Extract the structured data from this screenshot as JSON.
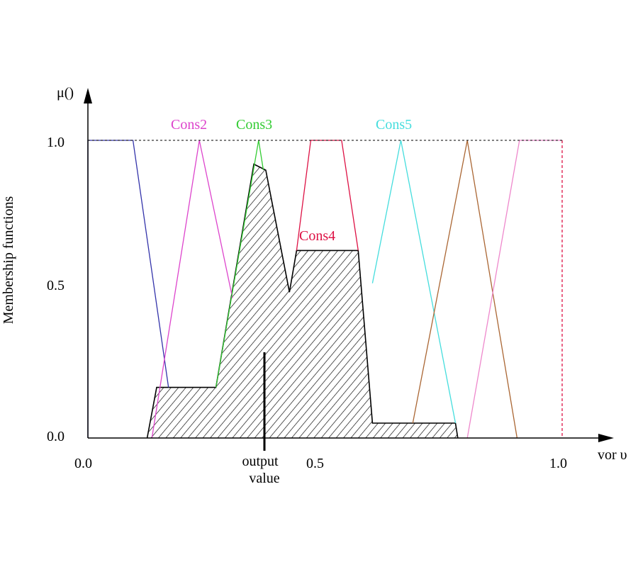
{
  "axis": {
    "y_label": "μ()",
    "x_label": "vor υ",
    "y_title": "Membership functions",
    "y_ticks": [
      "1.0",
      "0.5",
      "0.0"
    ],
    "x_ticks": [
      "0.0",
      "0.5",
      "1.0"
    ]
  },
  "output_label": {
    "line1": "output",
    "line2": "value"
  },
  "colors": {
    "cons1": "#3333aa",
    "cons2": "#dd44cc",
    "cons3": "#33cc33",
    "cons4": "#dd1144",
    "cons5": "#44dddd",
    "cons6": "#aa6633",
    "cons7": "#ee88cc",
    "cons8": "#dd1144",
    "aggregate": "#000000"
  },
  "chart_data": {
    "type": "line",
    "xlim": [
      0,
      1.0
    ],
    "ylim": [
      0,
      1.0
    ],
    "series": [
      {
        "key": "cons1",
        "x": [
          0,
          0,
          0.095,
          0.17
        ],
        "y": [
          0,
          1,
          1,
          0.17
        ]
      },
      {
        "key": "cons2",
        "name": "Cons2",
        "x": [
          0.135,
          0.235,
          0.305
        ],
        "y": [
          0,
          1,
          0.47
        ]
      },
      {
        "key": "cons3",
        "name": "Cons3",
        "x": [
          0.27,
          0.36,
          0.37
        ],
        "y": [
          0.17,
          1,
          0.9
        ]
      },
      {
        "key": "cons4",
        "name": "Cons4",
        "x": [
          0.44,
          0.47,
          0.535,
          0.57
        ],
        "y": [
          0.63,
          1,
          1,
          0.63
        ]
      },
      {
        "key": "cons5",
        "name": "Cons5",
        "x": [
          0.6,
          0.66,
          0.775
        ],
        "y": [
          0.52,
          1,
          0.05
        ]
      },
      {
        "key": "cons6",
        "x": [
          0.685,
          0.8,
          0.905
        ],
        "y": [
          0.05,
          1,
          0
        ]
      },
      {
        "key": "cons7",
        "x": [
          0.8,
          0.91,
          1.0
        ],
        "y": [
          0,
          1,
          1
        ]
      },
      {
        "key": "cons8",
        "x": [
          1.0,
          1.0
        ],
        "y": [
          1,
          0
        ]
      }
    ],
    "aggregate": {
      "x": [
        0.125,
        0.145,
        0.27,
        0.35,
        0.375,
        0.425,
        0.44,
        0.57,
        0.6,
        0.625,
        0.775,
        0.78
      ],
      "y": [
        0,
        0.17,
        0.17,
        0.92,
        0.9,
        0.49,
        0.63,
        0.63,
        0.05,
        0.05,
        0.05,
        0
      ]
    },
    "output_value": 0.373
  }
}
